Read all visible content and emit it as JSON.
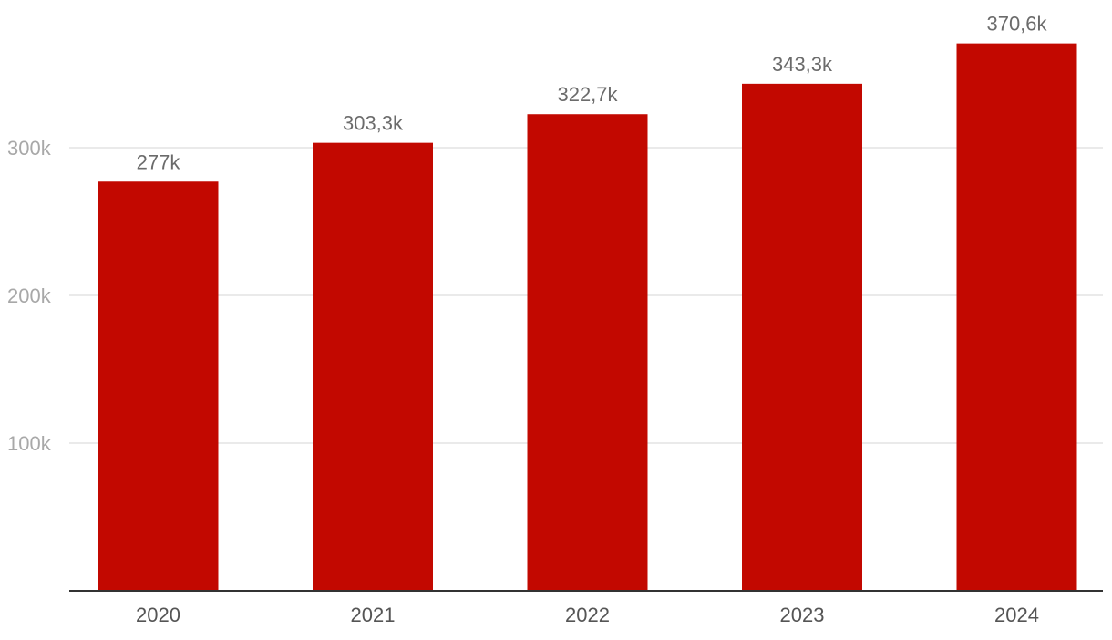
{
  "colors": {
    "bar": "#c20800",
    "grid": "#e3e3e3",
    "axis": "#333333",
    "tick_text": "#a8a8a8",
    "category_text": "#555555",
    "data_label_text": "#6b6b6b"
  },
  "chart_data": {
    "type": "bar",
    "categories": [
      "2020",
      "2021",
      "2022",
      "2023",
      "2024"
    ],
    "values": [
      277000,
      303300,
      322700,
      343300,
      370600
    ],
    "data_labels": [
      "277k",
      "303,3k",
      "322,7k",
      "343,3k",
      "370,6k"
    ],
    "yticks": [
      {
        "value": 100000,
        "label": "100k"
      },
      {
        "value": 200000,
        "label": "200k"
      },
      {
        "value": 300000,
        "label": "300k"
      }
    ],
    "ylim": [
      0,
      370600
    ],
    "grid": true,
    "legend": "none",
    "title": "",
    "xlabel": "",
    "ylabel": ""
  }
}
